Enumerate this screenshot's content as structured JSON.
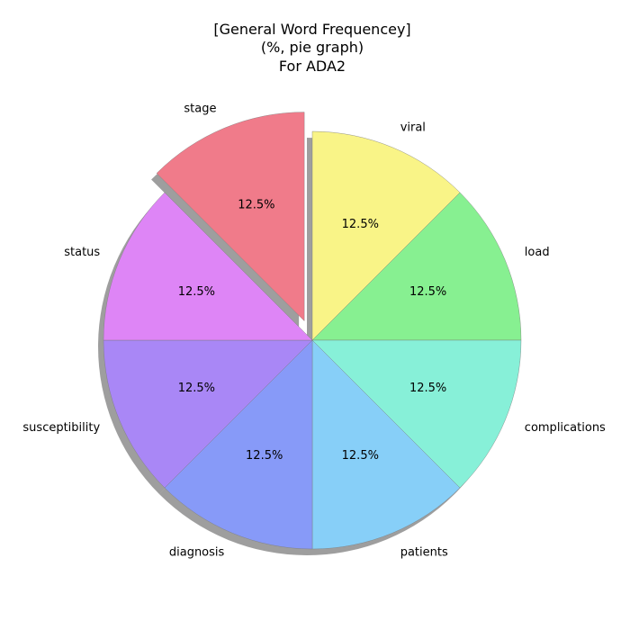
{
  "chart_data": {
    "type": "pie",
    "title_lines": [
      "[General Word Frequencey]",
      "(%, pie graph)",
      "For ADA2"
    ],
    "slices": [
      {
        "label": "viral",
        "value": 12.5,
        "pct_label": "12.5%",
        "color": "#f9f487",
        "exploded": false
      },
      {
        "label": "load",
        "value": 12.5,
        "pct_label": "12.5%",
        "color": "#87f091",
        "exploded": false
      },
      {
        "label": "complications",
        "value": 12.5,
        "pct_label": "12.5%",
        "color": "#87f0d8",
        "exploded": false
      },
      {
        "label": "patients",
        "value": 12.5,
        "pct_label": "12.5%",
        "color": "#87cff8",
        "exploded": false
      },
      {
        "label": "diagnosis",
        "value": 12.5,
        "pct_label": "12.5%",
        "color": "#879af8",
        "exploded": false
      },
      {
        "label": "susceptibility",
        "value": 12.5,
        "pct_label": "12.5%",
        "color": "#a987f6",
        "exploded": false
      },
      {
        "label": "status",
        "value": 12.5,
        "pct_label": "12.5%",
        "color": "#de85f6",
        "exploded": false
      },
      {
        "label": "stage",
        "value": 12.5,
        "pct_label": "12.5%",
        "color": "#f07b8a",
        "exploded": true
      }
    ],
    "start_angle_deg": 90,
    "direction": "clockwise",
    "shadow": true,
    "legend": "none"
  }
}
